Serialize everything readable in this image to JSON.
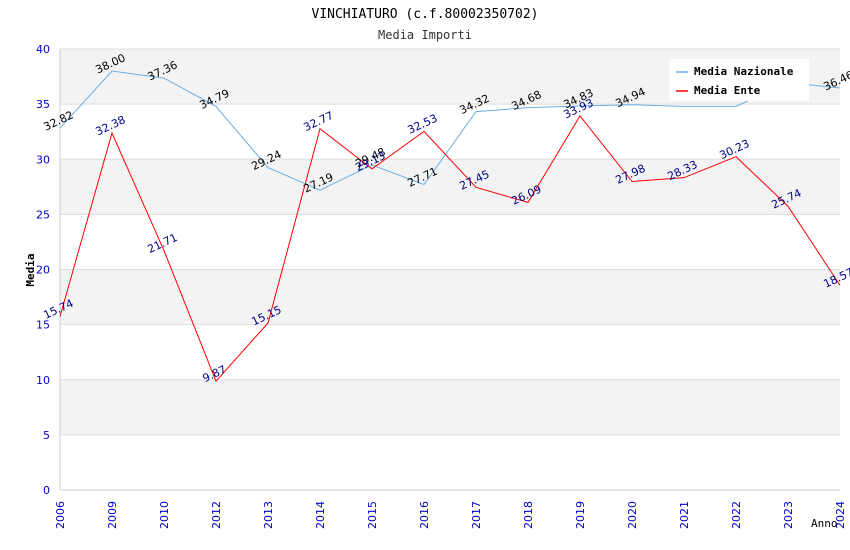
{
  "chart_data": {
    "type": "line",
    "title": "VINCHIATURO (c.f.80002350702)",
    "subtitle": "Media Importi",
    "xlabel": "Anno",
    "ylabel": "Media",
    "ylim": [
      0,
      40
    ],
    "yticks": [
      0,
      5,
      10,
      15,
      20,
      25,
      30,
      35,
      40
    ],
    "categories": [
      "2006",
      "2009",
      "2010",
      "2012",
      "2013",
      "2014",
      "2015",
      "2016",
      "2017",
      "2018",
      "2019",
      "2020",
      "2021",
      "2022",
      "2023",
      "2024"
    ],
    "series": [
      {
        "name": "Media Nazionale",
        "color": "#6aaee6",
        "label_color": "#000000",
        "values": [
          32.82,
          38.0,
          37.36,
          34.79,
          29.24,
          27.19,
          29.48,
          27.71,
          34.32,
          34.68,
          34.83,
          34.94,
          34.8,
          34.8,
          36.95,
          36.46
        ],
        "labels": [
          "32.82",
          "38.00",
          "37.36",
          "34.79",
          "29.24",
          "27.19",
          "29.48",
          "27.71",
          "34.32",
          "34.68",
          "34.83",
          "34.94",
          "",
          "",
          "",
          "36.46"
        ]
      },
      {
        "name": "Media Ente",
        "color": "#ff0000",
        "label_color": "#00008b",
        "values": [
          15.74,
          32.38,
          21.71,
          9.87,
          15.15,
          32.77,
          29.13,
          32.53,
          27.45,
          26.09,
          33.93,
          27.98,
          28.33,
          30.23,
          25.74,
          18.57
        ],
        "labels": [
          "15.74",
          "32.38",
          "21.71",
          "9.87",
          "15.15",
          "32.77",
          "29.13",
          "32.53",
          "27.45",
          "26.09",
          "33.93",
          "27.98",
          "28.33",
          "30.23",
          "25.74",
          "18.57"
        ]
      }
    ],
    "legend": {
      "position": "top-right"
    },
    "grid": true
  }
}
